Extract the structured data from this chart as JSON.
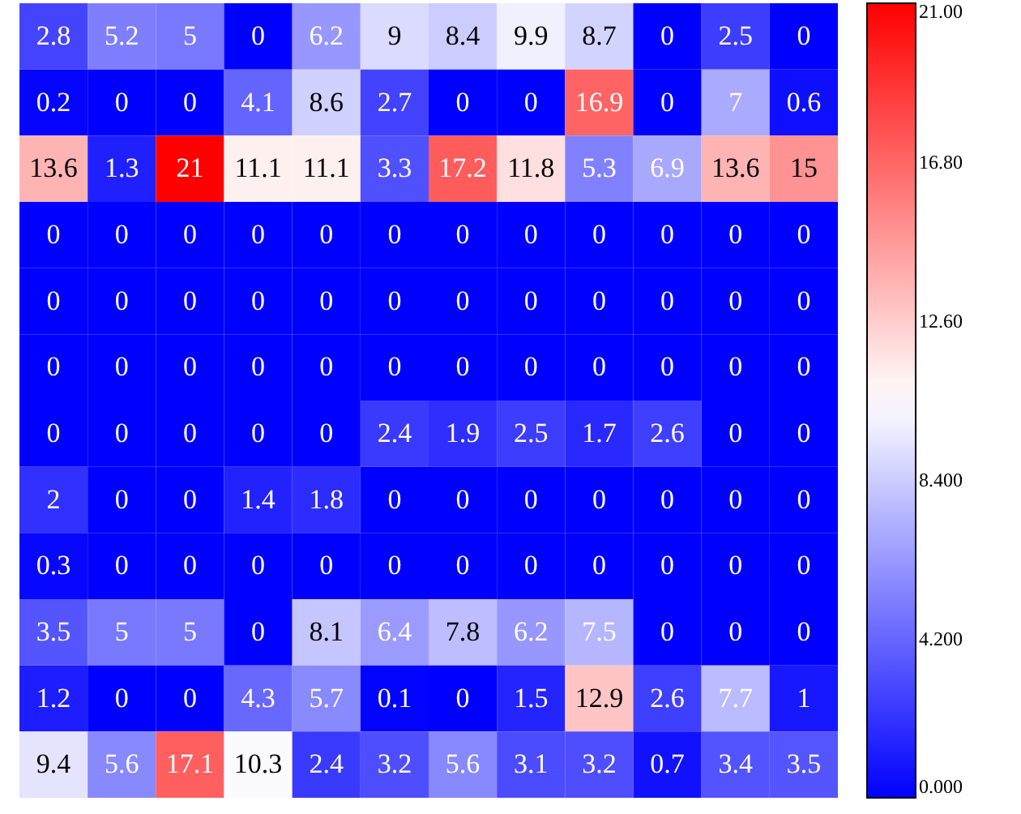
{
  "chart_data": {
    "type": "heatmap",
    "categories": [
      null,
      null,
      null,
      null,
      null,
      null,
      null,
      null,
      null,
      null,
      null,
      null
    ],
    "y_categories": [
      null,
      null,
      null,
      null,
      null,
      null,
      null,
      null,
      null,
      null,
      null,
      null
    ],
    "cells": [
      [
        2.8,
        5.2,
        5,
        0,
        6.2,
        9,
        8.4,
        9.9,
        8.7,
        0,
        2.5,
        0
      ],
      [
        0.2,
        0,
        0,
        4.1,
        8.6,
        2.7,
        0,
        0,
        16.9,
        0,
        7,
        0.6
      ],
      [
        13.6,
        1.3,
        21,
        11.1,
        11.1,
        3.3,
        17.2,
        11.8,
        5.3,
        6.9,
        13.6,
        15
      ],
      [
        0,
        0,
        0,
        0,
        0,
        0,
        0,
        0,
        0,
        0,
        0,
        0
      ],
      [
        0,
        0,
        0,
        0,
        0,
        0,
        0,
        0,
        0,
        0,
        0,
        0
      ],
      [
        0,
        0,
        0,
        0,
        0,
        0,
        0,
        0,
        0,
        0,
        0,
        0
      ],
      [
        0,
        0,
        0,
        0,
        0,
        2.4,
        1.9,
        2.5,
        1.7,
        2.6,
        0,
        0
      ],
      [
        2,
        0,
        0,
        1.4,
        1.8,
        0,
        0,
        0,
        0,
        0,
        0,
        0
      ],
      [
        0.3,
        0,
        0,
        0,
        0,
        0,
        0,
        0,
        0,
        0,
        0,
        0
      ],
      [
        3.5,
        5,
        5,
        0,
        8.1,
        6.4,
        7.8,
        6.2,
        7.5,
        0,
        0,
        0
      ],
      [
        1.2,
        0,
        0,
        4.3,
        5.7,
        0.1,
        0,
        1.5,
        12.9,
        2.6,
        7.7,
        1
      ],
      [
        9.4,
        5.6,
        17.1,
        10.3,
        2.4,
        3.2,
        5.6,
        3.1,
        3.2,
        0.7,
        3.4,
        3.5
      ]
    ],
    "data_labels": true,
    "clim": [
      0,
      21
    ],
    "cticks": [
      {
        "value": 0,
        "label": "0.000"
      },
      {
        "value": 4.2,
        "label": "4.200"
      },
      {
        "value": 8.4,
        "label": "8.400"
      },
      {
        "value": 12.6,
        "label": "12.60"
      },
      {
        "value": 16.8,
        "label": "16.80"
      },
      {
        "value": 21,
        "label": "21.00"
      }
    ],
    "colors": [
      "#0000ff",
      "#ffffff",
      "#ff0000"
    ]
  }
}
